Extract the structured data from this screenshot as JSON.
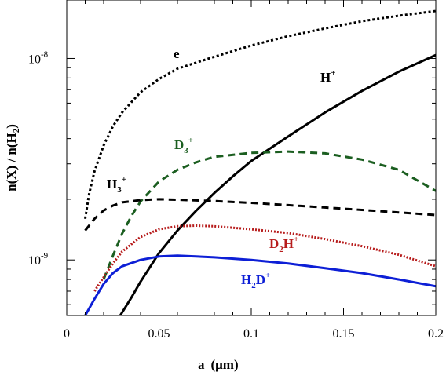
{
  "chart_data": {
    "type": "line",
    "title": "",
    "xlabel": "a",
    "xlabel_unit": "(μm)",
    "ylabel": "n(X) / n(H",
    "ylabel_sub": "2",
    "ylabel_end": ")",
    "xlim": [
      0,
      0.2
    ],
    "ylim": [
      5.3e-10,
      1.95e-08
    ],
    "yscale": "log",
    "grid": false,
    "legend": "none",
    "x_ticks": [
      {
        "value": 0,
        "label": "0"
      },
      {
        "value": 0.05,
        "label": "0.05"
      },
      {
        "value": 0.1,
        "label": "0.1"
      },
      {
        "value": 0.15,
        "label": "0.15"
      },
      {
        "value": 0.2,
        "label": "0.2"
      }
    ],
    "y_ticks": [
      {
        "value": 1e-09,
        "base": "10",
        "exp": "-9"
      },
      {
        "value": 1e-08,
        "base": "10",
        "exp": "-8"
      }
    ],
    "series": [
      {
        "label": {
          "base": "e",
          "sub": "",
          "sup": ""
        },
        "color": "#000000",
        "dash": "3,3",
        "x": [
          0.01,
          0.012,
          0.015,
          0.02,
          0.025,
          0.03,
          0.04,
          0.05,
          0.06,
          0.08,
          0.1,
          0.12,
          0.14,
          0.16,
          0.18,
          0.2
        ],
        "y": [
          1.6e-09,
          2.1e-09,
          2.75e-09,
          3.7e-09,
          4.6e-09,
          5.4e-09,
          6.8e-09,
          7.9e-09,
          8.9e-09,
          1.02e-08,
          1.16e-08,
          1.29e-08,
          1.41e-08,
          1.53e-08,
          1.63e-08,
          1.72e-08
        ]
      },
      {
        "label": {
          "base": "H",
          "sub": "",
          "sup": "+"
        },
        "color": "#000000",
        "dash": "",
        "x": [
          0.029,
          0.035,
          0.04,
          0.05,
          0.06,
          0.07,
          0.08,
          0.09,
          0.1,
          0.12,
          0.14,
          0.16,
          0.18,
          0.2
        ],
        "y": [
          5.3e-10,
          6.5e-10,
          7.8e-10,
          1.08e-09,
          1.4e-09,
          1.75e-09,
          2.15e-09,
          2.6e-09,
          3.1e-09,
          4.1e-09,
          5.4e-09,
          6.9e-09,
          8.6e-09,
          1.04e-08
        ]
      },
      {
        "label": {
          "base": "D",
          "sub": "3",
          "sup": "+"
        },
        "color": "#1b5e20",
        "dash": "9,6",
        "x": [
          0.02,
          0.025,
          0.03,
          0.035,
          0.04,
          0.05,
          0.06,
          0.07,
          0.08,
          0.1,
          0.12,
          0.14,
          0.16,
          0.18,
          0.2
        ],
        "y": [
          8e-10,
          1.05e-09,
          1.35e-09,
          1.65e-09,
          1.95e-09,
          2.45e-09,
          2.8e-09,
          3.05e-09,
          3.25e-09,
          3.4e-09,
          3.45e-09,
          3.38e-09,
          3.15e-09,
          2.8e-09,
          2.2e-09
        ]
      },
      {
        "label": {
          "base": "H",
          "sub": "3",
          "sup": "+"
        },
        "color": "#000000",
        "dash": "9,6",
        "x": [
          0.01,
          0.015,
          0.02,
          0.025,
          0.03,
          0.04,
          0.05,
          0.06,
          0.08,
          0.1,
          0.12,
          0.14,
          0.16,
          0.18,
          0.2
        ],
        "y": [
          1.4e-09,
          1.6e-09,
          1.76e-09,
          1.86e-09,
          1.93e-09,
          1.98e-09,
          2e-09,
          1.99e-09,
          1.96e-09,
          1.92e-09,
          1.87e-09,
          1.82e-09,
          1.77e-09,
          1.72e-09,
          1.67e-09
        ]
      },
      {
        "label": {
          "base": "D",
          "sub": "2",
          "sup": "H+"
        },
        "color": "#b71c1c",
        "dash": "2,2",
        "x": [
          0.015,
          0.02,
          0.025,
          0.03,
          0.04,
          0.05,
          0.06,
          0.07,
          0.08,
          0.1,
          0.12,
          0.14,
          0.16,
          0.18,
          0.2
        ],
        "y": [
          7e-10,
          8.2e-10,
          9.6e-10,
          1.1e-09,
          1.3e-09,
          1.42e-09,
          1.47e-09,
          1.48e-09,
          1.47e-09,
          1.42e-09,
          1.36e-09,
          1.27e-09,
          1.17e-09,
          1.06e-09,
          9.3e-10
        ]
      },
      {
        "label": {
          "base": "H",
          "sub": "2",
          "sup": "D+"
        },
        "color": "#0d1fd6",
        "dash": "",
        "x": [
          0.01,
          0.015,
          0.02,
          0.025,
          0.03,
          0.04,
          0.05,
          0.06,
          0.07,
          0.08,
          0.1,
          0.12,
          0.14,
          0.16,
          0.18,
          0.2
        ],
        "y": [
          5.3e-10,
          6.4e-10,
          7.6e-10,
          8.6e-10,
          9.3e-10,
          1e-09,
          1.04e-09,
          1.05e-09,
          1.04e-09,
          1.03e-09,
          1e-09,
          9.6e-10,
          9.1e-10,
          8.6e-10,
          8e-10,
          7.4e-10
        ]
      }
    ]
  }
}
